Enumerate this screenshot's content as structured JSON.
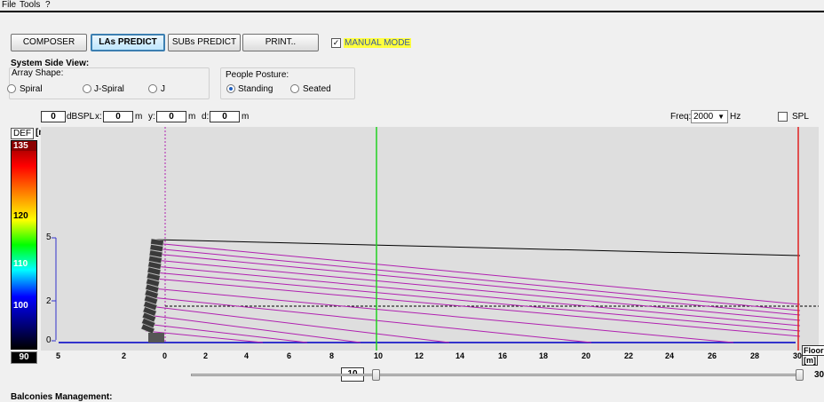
{
  "menu": {
    "file": "File",
    "tools": "Tools",
    "help": "?"
  },
  "toolbar": {
    "composer": "COMPOSER",
    "las_predict": "LAs PREDICT",
    "subs_predict": "SUBs PREDICT",
    "print": "PRINT..",
    "manual_mode": "MANUAL MODE",
    "manual_mode_checked": true
  },
  "section_title": "System Side View:",
  "array_shape": {
    "label": "Array Shape:",
    "options": [
      "Spiral",
      "J-Spiral",
      "J"
    ],
    "selected": null
  },
  "posture": {
    "label": "People Posture:",
    "options": [
      "Standing",
      "Seated"
    ],
    "selected": "Standing"
  },
  "readout": {
    "dbspl_value": "0",
    "dbspl_unit": "dBSPL",
    "x_label": "x:",
    "x_value": "0",
    "x_unit": "m",
    "y_label": "y:",
    "y_value": "0",
    "y_unit": "m",
    "d_label": "d:",
    "d_value": "0",
    "d_unit": "m"
  },
  "freq": {
    "label": "Freq:",
    "value": "2000",
    "unit": "Hz"
  },
  "spl": {
    "label": "SPL",
    "checked": false
  },
  "scale": {
    "def_label": "DEF",
    "unit_label": "[m]",
    "top": "135",
    "ticks": [
      "120",
      "110",
      "100"
    ],
    "bottom": "90"
  },
  "plot": {
    "x_ticks": [
      "5",
      "2",
      "0",
      "2",
      "4",
      "6",
      "8",
      "10",
      "12",
      "14",
      "16",
      "18",
      "20",
      "22",
      "24",
      "26",
      "28",
      "30"
    ],
    "y_ticks": [
      "5",
      "2",
      "0"
    ],
    "floor_label": "Floor",
    "floor_unit": "[m]"
  },
  "slider": {
    "value": "10",
    "max_label": "30",
    "position": 10,
    "range": [
      0,
      30
    ]
  },
  "footer": "Balconies Management:",
  "colors": {
    "ray": "#b020b0",
    "green_line": "#20d020",
    "red_line": "#e02020",
    "accent": "#3c7fb1"
  }
}
